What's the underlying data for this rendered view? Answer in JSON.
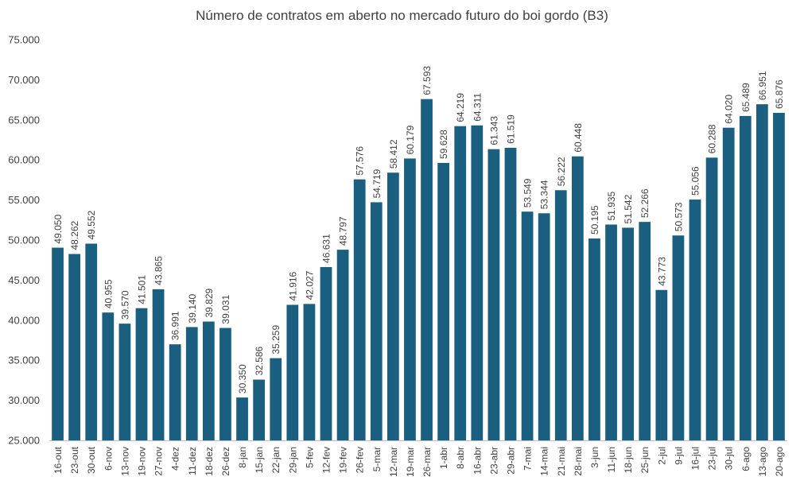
{
  "chart_data": {
    "type": "bar",
    "title": "Número de contratos em aberto no mercado futuro do boi gordo (B3)",
    "xlabel": "",
    "ylabel": "",
    "ylim": [
      25000,
      75000
    ],
    "yticks": [
      25000,
      30000,
      35000,
      40000,
      45000,
      50000,
      55000,
      60000,
      65000,
      70000,
      75000
    ],
    "ytick_labels": [
      "25.000",
      "30.000",
      "35.000",
      "40.000",
      "45.000",
      "50.000",
      "55.000",
      "60.000",
      "65.000",
      "70.000",
      "75.000"
    ],
    "grid": false,
    "legend": "none",
    "bar_color": "#1a5f7f",
    "categories": [
      "16-out",
      "23-out",
      "30-out",
      "6-nov",
      "13-nov",
      "19-nov",
      "27-nov",
      "4-dez",
      "11-dez",
      "18-dez",
      "26-dez",
      "8-jan",
      "15-jan",
      "22-jan",
      "29-jan",
      "5-fev",
      "12-fev",
      "19-fev",
      "26-fev",
      "5-mar",
      "12-mar",
      "19-mar",
      "26-mar",
      "1-abr",
      "8-abr",
      "16-abr",
      "23-abr",
      "29-abr",
      "7-mai",
      "14-mai",
      "21-mai",
      "28-mai",
      "3-jun",
      "11-jun",
      "18-jun",
      "25-jun",
      "2-jul",
      "9-jul",
      "16-jul",
      "23-jul",
      "30-jul",
      "6-ago",
      "13-ago",
      "20-ago"
    ],
    "values": [
      49050,
      48262,
      49552,
      40955,
      39570,
      41501,
      43865,
      36991,
      39140,
      39829,
      39031,
      30350,
      32586,
      35259,
      41916,
      42027,
      46631,
      48797,
      57576,
      54719,
      58412,
      60179,
      67593,
      59628,
      64219,
      64311,
      61343,
      61519,
      53549,
      53344,
      56222,
      60448,
      50195,
      51935,
      51542,
      52266,
      43773,
      50573,
      55056,
      60288,
      64020,
      65489,
      66951,
      65876
    ],
    "data_labels": [
      "49.050",
      "48.262",
      "49.552",
      "40.955",
      "39.570",
      "41.501",
      "43.865",
      "36.991",
      "39.140",
      "39.829",
      "39.031",
      "30.350",
      "32.586",
      "35.259",
      "41.916",
      "42.027",
      "46.631",
      "48.797",
      "57.576",
      "54.719",
      "58.412",
      "60.179",
      "67.593",
      "59.628",
      "64.219",
      "64.311",
      "61.343",
      "61.519",
      "53.549",
      "53.344",
      "56.222",
      "60.448",
      "50.195",
      "51.935",
      "51.542",
      "52.266",
      "43.773",
      "50.573",
      "55.056",
      "60.288",
      "64.020",
      "65.489",
      "66.951",
      "65.876"
    ]
  }
}
